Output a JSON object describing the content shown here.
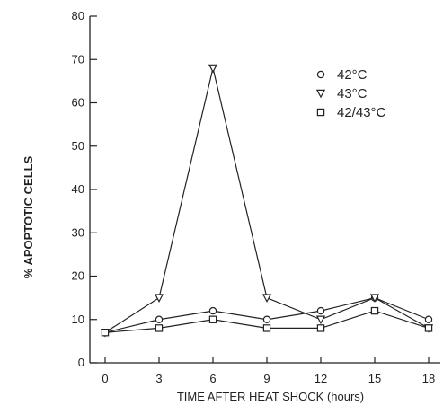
{
  "chart_data": {
    "type": "line",
    "xlabel": "TIME AFTER HEAT SHOCK (hours)",
    "ylabel": "% APOPTOTIC CELLS",
    "x": [
      0,
      3,
      6,
      9,
      12,
      15,
      18
    ],
    "xlim": [
      0,
      18
    ],
    "ylim": [
      0,
      80
    ],
    "xticks": [
      0,
      3,
      6,
      9,
      12,
      15,
      18
    ],
    "yticks": [
      0,
      10,
      20,
      30,
      40,
      50,
      60,
      70,
      80
    ],
    "grid": false,
    "legend_position": "top-right",
    "series": [
      {
        "name": "42°C",
        "marker": "circle",
        "values": [
          7,
          10,
          12,
          10,
          12,
          15,
          10
        ]
      },
      {
        "name": "43°C",
        "marker": "triangle-down",
        "values": [
          7,
          15,
          68,
          15,
          10,
          15,
          8
        ]
      },
      {
        "name": "42/43°C",
        "marker": "square",
        "values": [
          7,
          8,
          10,
          8,
          8,
          12,
          8
        ]
      }
    ]
  }
}
